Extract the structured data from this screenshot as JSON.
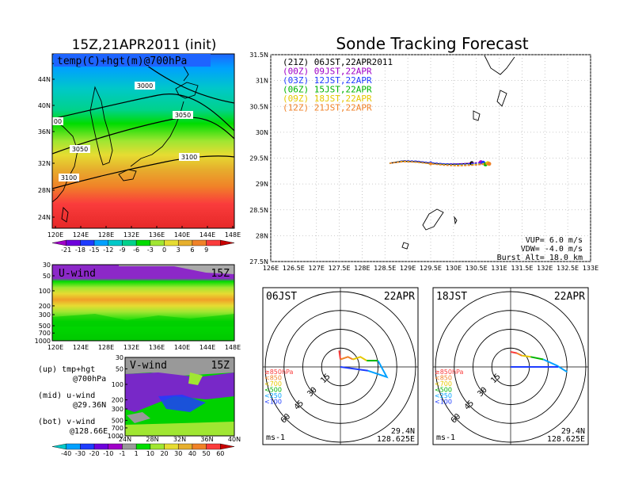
{
  "left_title": "15Z,21APR2011 (init)",
  "right_title": "Sonde Tracking Forecast",
  "map_panel": {
    "label": "temp(C)+hgt(m)@700hPa",
    "contours": [
      "3000",
      "3050",
      "3050",
      "3100",
      "3100",
      "00"
    ],
    "lat_ticks": [
      "44N",
      "40N",
      "36N",
      "32N",
      "28N",
      "24N"
    ],
    "lon_ticks": [
      "120E",
      "124E",
      "128E",
      "132E",
      "136E",
      "140E",
      "144E",
      "148E"
    ]
  },
  "temp_colorbar": {
    "labels": [
      "-21",
      "-18",
      "-15",
      "-12",
      "-9",
      "-6",
      "-3",
      "0",
      "3",
      "6",
      "9"
    ],
    "colors": [
      "#a000c8",
      "#6e00dc",
      "#1e3cff",
      "#00a0ff",
      "#00c8c8",
      "#00d28c",
      "#00dc00",
      "#a0e632",
      "#e6dc32",
      "#e6af2d",
      "#f08228",
      "#fa3c3c",
      "#c80000"
    ]
  },
  "u_panel": {
    "label": "U-wind",
    "time": "15Z",
    "p_ticks": [
      "30",
      "50",
      "100",
      "200",
      "300",
      "500",
      "700",
      "1000"
    ],
    "lon_ticks": [
      "120E",
      "124E",
      "128E",
      "132E",
      "136E",
      "140E",
      "144E",
      "148E"
    ]
  },
  "v_panel": {
    "label": "V-wind",
    "time": "15Z",
    "p_ticks": [
      "30",
      "50",
      "100",
      "200",
      "300",
      "500",
      "700",
      "1000"
    ],
    "lat_ticks": [
      "24N",
      "28N",
      "32N",
      "36N",
      "40N"
    ]
  },
  "side_notes": [
    {
      "line1": "(up) tmp+hgt",
      "line2": "@700hPa"
    },
    {
      "line1": "(mid) u-wind",
      "line2": "@29.36N"
    },
    {
      "line1": "(bot) v-wind",
      "line2": "@128.66E"
    }
  ],
  "wind_colorbar": {
    "labels": [
      "-40",
      "-30",
      "-20",
      "-10",
      "-1",
      "1",
      "10",
      "20",
      "30",
      "40",
      "50",
      "60"
    ],
    "colors": [
      "#00c8c8",
      "#00a0ff",
      "#1e3cff",
      "#6e00dc",
      "#a000c8",
      "#999999",
      "#00dc00",
      "#a0e632",
      "#e6dc32",
      "#e6af2d",
      "#f08228",
      "#fa3c3c",
      "#c80000"
    ]
  },
  "track_panel": {
    "x_ticks": [
      "126E",
      "126.5E",
      "127E",
      "127.5E",
      "128E",
      "128.5E",
      "129E",
      "129.5E",
      "130E",
      "130.5E",
      "131E",
      "131.5E",
      "132E",
      "132.5E",
      "133E"
    ],
    "y_ticks": [
      "31.5N",
      "31N",
      "30.5N",
      "30N",
      "29.5N",
      "29N",
      "28.5N",
      "28N",
      "27.5N"
    ],
    "legend": [
      {
        "label": "(21Z) 06JST,22APR2011",
        "color": "#000000"
      },
      {
        "label": "(00Z) 09JST,22APR",
        "color": "#a000c8"
      },
      {
        "label": "(03Z) 12JST,22APR",
        "color": "#1e3cff"
      },
      {
        "label": "(06Z) 15JST,22APR",
        "color": "#00b400"
      },
      {
        "label": "(09Z) 18JST,22APR",
        "color": "#e6c800"
      },
      {
        "label": "(12Z) 21JST,22APR",
        "color": "#f08228"
      }
    ],
    "params": [
      "VUP= 6.0 m/s",
      "VDW= -4.0 m/s",
      "Burst Alt= 18.0 km"
    ]
  },
  "hodo_left": {
    "time": "06JST",
    "date": "22APR",
    "rings": [
      "15",
      "30",
      "45",
      "60"
    ],
    "levels": [
      {
        "label": "≥850hPa",
        "color": "#fa3c3c"
      },
      {
        "label": "<850",
        "color": "#f08228"
      },
      {
        "label": "<700",
        "color": "#e6c800"
      },
      {
        "label": "<500",
        "color": "#00b400"
      },
      {
        "label": "<250",
        "color": "#00a0ff"
      },
      {
        "label": "<100",
        "color": "#1e3cff"
      }
    ],
    "units": "ms-1",
    "lat": "29.4N",
    "lon": "128.625E"
  },
  "hodo_right": {
    "time": "18JST",
    "date": "22APR",
    "rings": [
      "15",
      "30",
      "45",
      "60"
    ],
    "levels": [
      {
        "label": "≥850hPa",
        "color": "#fa3c3c"
      },
      {
        "label": "<850",
        "color": "#f08228"
      },
      {
        "label": "<700",
        "color": "#e6c800"
      },
      {
        "label": "<500",
        "color": "#00b400"
      },
      {
        "label": "<250",
        "color": "#00a0ff"
      },
      {
        "label": "<100",
        "color": "#1e3cff"
      }
    ],
    "units": "ms-1",
    "lat": "29.4N",
    "lon": "128.625E"
  },
  "chart_data": [
    {
      "type": "heatmap",
      "title": "temp(C)+hgt(m)@700hPa",
      "xlabel": "",
      "ylabel": "",
      "xlim": [
        120,
        149
      ],
      "ylim": [
        22,
        48
      ],
      "x_unit": "degE",
      "y_unit": "degN",
      "contour_levels": [
        3000,
        3050,
        3100
      ]
    },
    {
      "type": "heatmap",
      "title": "U-wind",
      "xlim": [
        120,
        149
      ],
      "ylim": [
        1000,
        30
      ],
      "x_unit": "degE",
      "y_unit": "hPa"
    },
    {
      "type": "heatmap",
      "title": "V-wind",
      "xlim": [
        24,
        40
      ],
      "ylim": [
        1000,
        30
      ],
      "x_unit": "degN",
      "y_unit": "hPa"
    },
    {
      "type": "line",
      "title": "Sonde Tracking Forecast",
      "xlim": [
        126,
        133
      ],
      "ylim": [
        27.5,
        31.5
      ],
      "series": [
        {
          "name": "(21Z) 06JST,22APR2011",
          "x": [
            128.6,
            128.9,
            129.2,
            129.5,
            129.8,
            130.0,
            130.2,
            130.4
          ],
          "y": [
            29.4,
            29.44,
            29.43,
            29.4,
            29.38,
            29.38,
            29.39,
            29.4
          ]
        },
        {
          "name": "(00Z) 09JST,22APR",
          "x": [
            128.6,
            128.9,
            129.2,
            129.5,
            129.8,
            130.1,
            130.4,
            130.6
          ],
          "y": [
            29.4,
            29.45,
            29.44,
            29.41,
            29.39,
            29.39,
            29.4,
            29.42
          ]
        },
        {
          "name": "(03Z) 12JST,22APR",
          "x": [
            128.6,
            128.9,
            129.2,
            129.5,
            129.8,
            130.1,
            130.4,
            130.65
          ],
          "y": [
            29.4,
            29.45,
            29.44,
            29.41,
            29.39,
            29.38,
            29.39,
            29.41
          ]
        },
        {
          "name": "(06Z) 15JST,22APR",
          "x": [
            128.6,
            128.9,
            129.2,
            129.5,
            129.8,
            130.1,
            130.4,
            130.7
          ],
          "y": [
            29.4,
            29.44,
            29.42,
            29.39,
            29.37,
            29.36,
            29.37,
            29.38
          ]
        },
        {
          "name": "(09Z) 18JST,22APR",
          "x": [
            128.6,
            128.9,
            129.2,
            129.5,
            129.8,
            130.1,
            130.4,
            130.75
          ],
          "y": [
            29.4,
            29.44,
            29.42,
            29.39,
            29.37,
            29.36,
            29.37,
            29.4
          ]
        },
        {
          "name": "(12Z) 21JST,22APR",
          "x": [
            128.6,
            128.9,
            129.2,
            129.5,
            129.8,
            130.1,
            130.4,
            130.78
          ],
          "y": [
            29.4,
            29.43,
            29.42,
            29.39,
            29.36,
            29.35,
            29.36,
            29.39
          ]
        }
      ]
    },
    {
      "type": "line",
      "title": "06JST 22APR",
      "xlim": [
        -75,
        75
      ],
      "ylim": [
        -75,
        75
      ],
      "series": [
        {
          "name": "≥850hPa",
          "x": [
            -1,
            0
          ],
          "y": [
            13,
            6
          ]
        },
        {
          "name": "<850",
          "x": [
            0,
            6,
            10
          ],
          "y": [
            6,
            8,
            6
          ]
        },
        {
          "name": "<700",
          "x": [
            10,
            16,
            21
          ],
          "y": [
            6,
            8,
            5
          ]
        },
        {
          "name": "<500",
          "x": [
            21,
            30
          ],
          "y": [
            5,
            5
          ]
        },
        {
          "name": "<250",
          "x": [
            30,
            37,
            22
          ],
          "y": [
            5,
            -8,
            -3
          ]
        },
        {
          "name": "<100",
          "x": [
            22,
            0
          ],
          "y": [
            -3,
            0
          ]
        }
      ]
    },
    {
      "type": "line",
      "title": "18JST 22APR",
      "xlim": [
        -75,
        75
      ],
      "ylim": [
        -75,
        75
      ],
      "series": [
        {
          "name": "≥850hPa",
          "x": [
            0,
            5
          ],
          "y": [
            12,
            11
          ]
        },
        {
          "name": "<850",
          "x": [
            5,
            9
          ],
          "y": [
            11,
            9
          ]
        },
        {
          "name": "<700",
          "x": [
            9,
            16
          ],
          "y": [
            9,
            8
          ]
        },
        {
          "name": "<500",
          "x": [
            16,
            26
          ],
          "y": [
            8,
            6
          ]
        },
        {
          "name": "<250",
          "x": [
            26,
            37,
            45
          ],
          "y": [
            6,
            1,
            -4
          ]
        },
        {
          "name": "<100",
          "x": [
            38,
            0
          ],
          "y": [
            0,
            0
          ]
        }
      ]
    }
  ]
}
